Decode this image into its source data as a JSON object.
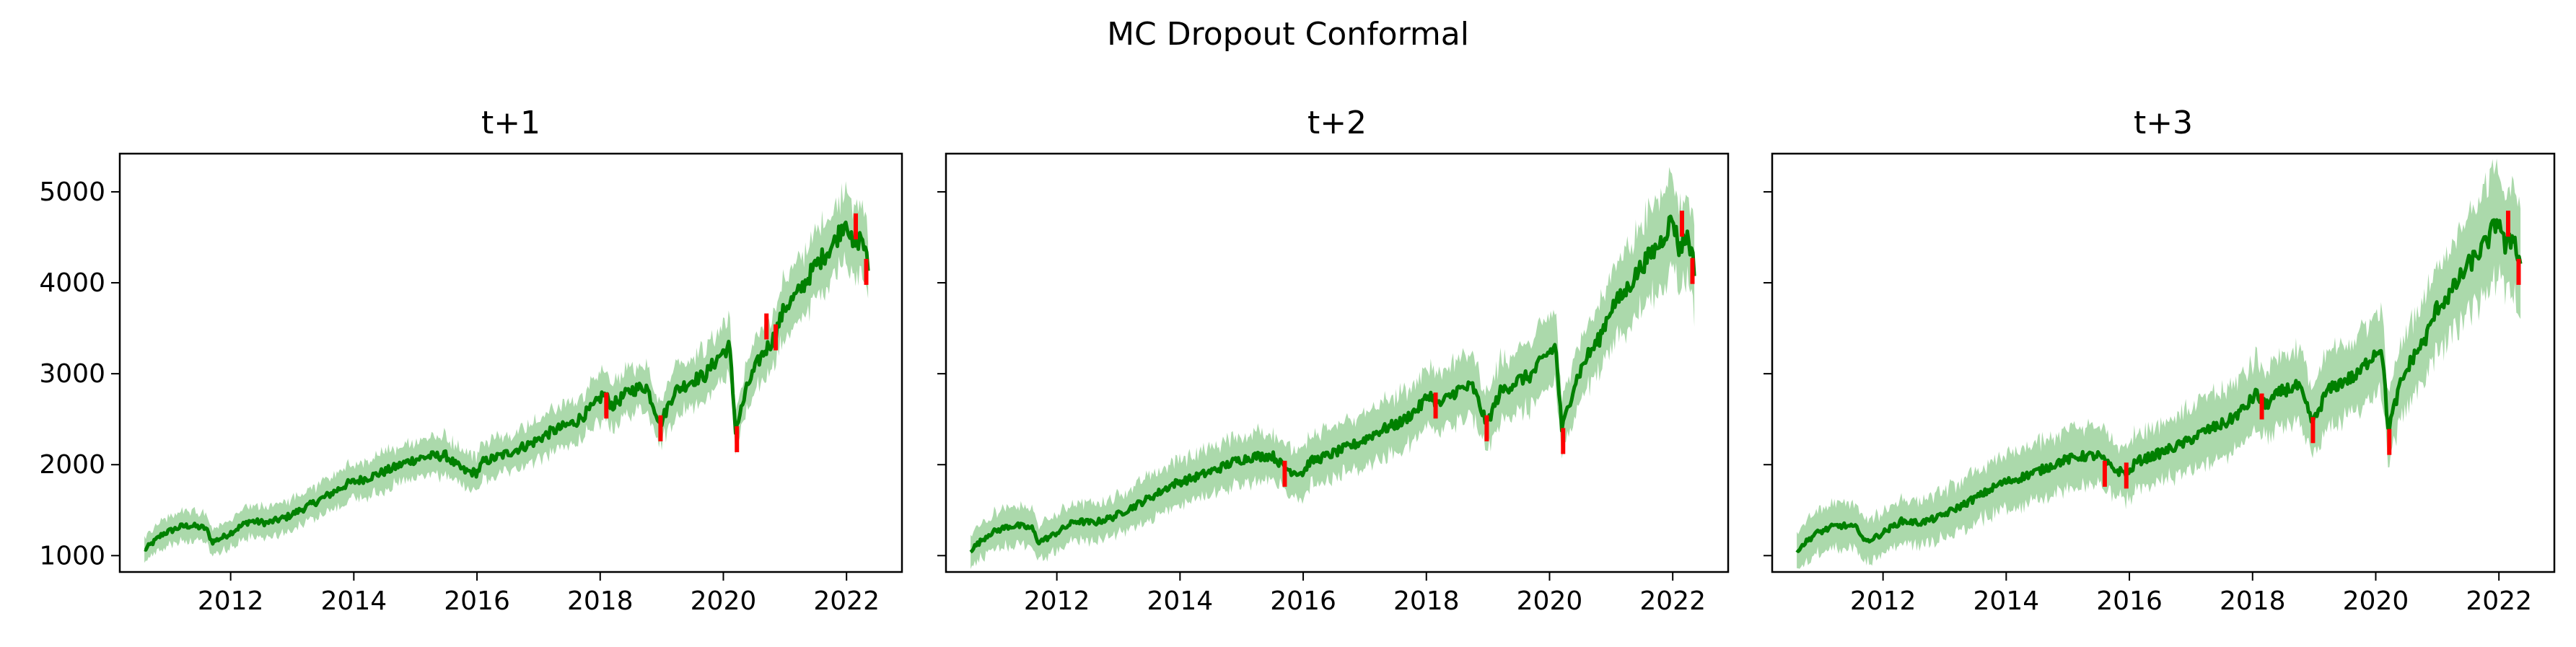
{
  "figure": {
    "suptitle": "MC Dropout Conformal"
  },
  "colors": {
    "interval": "#2ca02c",
    "prediction": "#008000",
    "outside": "#ff0000",
    "axes": "#000000"
  },
  "chart_data": [
    {
      "type": "line",
      "title": "t+1",
      "xlabel": "",
      "ylabel": "",
      "xlim": [
        2010.2,
        2022.9
      ],
      "ylim": [
        820,
        5420
      ],
      "x_ticks": [
        "2012",
        "2014",
        "2016",
        "2018",
        "2020",
        "2022"
      ],
      "y_ticks": [
        "1000",
        "2000",
        "3000",
        "4000",
        "5000"
      ],
      "grid": false,
      "series": [
        {
          "role": "prediction",
          "x": [
            2010.6,
            2010.9,
            2011.2,
            2011.35,
            2011.6,
            2011.7,
            2011.9,
            2012.3,
            2012.6,
            2012.9,
            2013.3,
            2013.6,
            2013.9,
            2014.2,
            2014.6,
            2014.9,
            2015.2,
            2015.5,
            2015.65,
            2015.8,
            2016.0,
            2016.1,
            2016.4,
            2016.9,
            2017.2,
            2017.6,
            2017.9,
            2018.05,
            2018.2,
            2018.5,
            2018.75,
            2018.98,
            2019.2,
            2019.5,
            2019.7,
            2019.95,
            2020.1,
            2020.2,
            2020.4,
            2020.6,
            2020.8,
            2021.0,
            2021.2,
            2021.5,
            2021.8,
            2022.0,
            2022.1,
            2022.25,
            2022.35
          ],
          "y": [
            1060,
            1240,
            1320,
            1330,
            1300,
            1150,
            1210,
            1380,
            1360,
            1420,
            1560,
            1670,
            1790,
            1850,
            1950,
            2040,
            2090,
            2100,
            2000,
            1930,
            1910,
            2030,
            2100,
            2240,
            2360,
            2470,
            2640,
            2780,
            2650,
            2820,
            2860,
            2450,
            2800,
            2930,
            2980,
            3210,
            3300,
            2380,
            2880,
            3180,
            3370,
            3730,
            3870,
            4190,
            4440,
            4720,
            4380,
            4520,
            4170
          ]
        },
        {
          "role": "interval-half-width",
          "value": 170
        },
        {
          "role": "outside-interval",
          "x": [
            2018.1,
            2018.98,
            2020.22,
            2020.7,
            2020.85,
            2022.15,
            2022.32
          ],
          "y": [
            2650,
            2400,
            2280,
            3520,
            3400,
            4620,
            4120
          ]
        }
      ]
    },
    {
      "type": "line",
      "title": "t+2",
      "xlabel": "",
      "ylabel": "",
      "xlim": [
        2010.2,
        2022.9
      ],
      "ylim": [
        820,
        5420
      ],
      "x_ticks": [
        "2012",
        "2014",
        "2016",
        "2018",
        "2020",
        "2022"
      ],
      "y_ticks": [],
      "grid": false,
      "series": [
        {
          "role": "prediction",
          "x": [
            2010.6,
            2010.9,
            2011.2,
            2011.35,
            2011.6,
            2011.7,
            2011.9,
            2012.3,
            2012.6,
            2012.9,
            2013.3,
            2013.6,
            2013.9,
            2014.2,
            2014.6,
            2014.9,
            2015.2,
            2015.5,
            2015.65,
            2015.8,
            2016.0,
            2016.1,
            2016.4,
            2016.9,
            2017.2,
            2017.6,
            2017.9,
            2018.05,
            2018.2,
            2018.5,
            2018.75,
            2018.98,
            2019.2,
            2019.5,
            2019.7,
            2019.95,
            2020.1,
            2020.2,
            2020.4,
            2020.6,
            2020.8,
            2021.0,
            2021.2,
            2021.5,
            2021.8,
            2022.0,
            2022.1,
            2022.25,
            2022.35
          ],
          "y": [
            1060,
            1240,
            1320,
            1330,
            1300,
            1150,
            1210,
            1380,
            1360,
            1420,
            1560,
            1670,
            1790,
            1850,
            1950,
            2040,
            2090,
            2100,
            2000,
            1930,
            1910,
            2030,
            2100,
            2240,
            2360,
            2470,
            2640,
            2780,
            2650,
            2820,
            2860,
            2450,
            2800,
            2930,
            2980,
            3210,
            3300,
            2380,
            2880,
            3180,
            3370,
            3730,
            3870,
            4190,
            4440,
            4720,
            4380,
            4520,
            4170
          ]
        },
        {
          "role": "interval-half-width",
          "value": 220
        },
        {
          "role": "outside-interval",
          "x": [
            2015.7,
            2018.15,
            2018.98,
            2020.22,
            2022.15,
            2022.32
          ],
          "y": [
            1900,
            2650,
            2400,
            2260,
            4650,
            4130
          ]
        }
      ]
    },
    {
      "type": "line",
      "title": "t+3",
      "xlabel": "",
      "ylabel": "",
      "xlim": [
        2010.2,
        2022.9
      ],
      "ylim": [
        820,
        5420
      ],
      "x_ticks": [
        "2012",
        "2014",
        "2016",
        "2018",
        "2020",
        "2022"
      ],
      "y_ticks": [],
      "grid": false,
      "series": [
        {
          "role": "prediction",
          "x": [
            2010.6,
            2010.9,
            2011.2,
            2011.35,
            2011.6,
            2011.7,
            2011.9,
            2012.3,
            2012.6,
            2012.9,
            2013.3,
            2013.6,
            2013.9,
            2014.2,
            2014.6,
            2014.9,
            2015.2,
            2015.5,
            2015.65,
            2015.8,
            2016.0,
            2016.1,
            2016.4,
            2016.9,
            2017.2,
            2017.6,
            2017.9,
            2018.05,
            2018.2,
            2018.5,
            2018.75,
            2018.98,
            2019.2,
            2019.5,
            2019.7,
            2019.95,
            2020.1,
            2020.2,
            2020.4,
            2020.6,
            2020.8,
            2021.0,
            2021.2,
            2021.5,
            2021.8,
            2022.0,
            2022.1,
            2022.25,
            2022.35
          ],
          "y": [
            1060,
            1240,
            1320,
            1330,
            1300,
            1150,
            1210,
            1380,
            1360,
            1420,
            1560,
            1670,
            1790,
            1850,
            1950,
            2040,
            2090,
            2100,
            2000,
            1930,
            1910,
            2030,
            2100,
            2240,
            2360,
            2470,
            2640,
            2780,
            2650,
            2820,
            2860,
            2450,
            2800,
            2930,
            2980,
            3210,
            3300,
            2380,
            2880,
            3180,
            3370,
            3730,
            3870,
            4190,
            4440,
            4720,
            4380,
            4520,
            4170
          ]
        },
        {
          "role": "interval-half-width",
          "value": 260
        },
        {
          "role": "outside-interval",
          "x": [
            2015.6,
            2015.95,
            2018.15,
            2018.98,
            2020.22,
            2022.15,
            2022.32
          ],
          "y": [
            1900,
            1880,
            2640,
            2380,
            2250,
            4650,
            4120
          ]
        }
      ]
    }
  ]
}
